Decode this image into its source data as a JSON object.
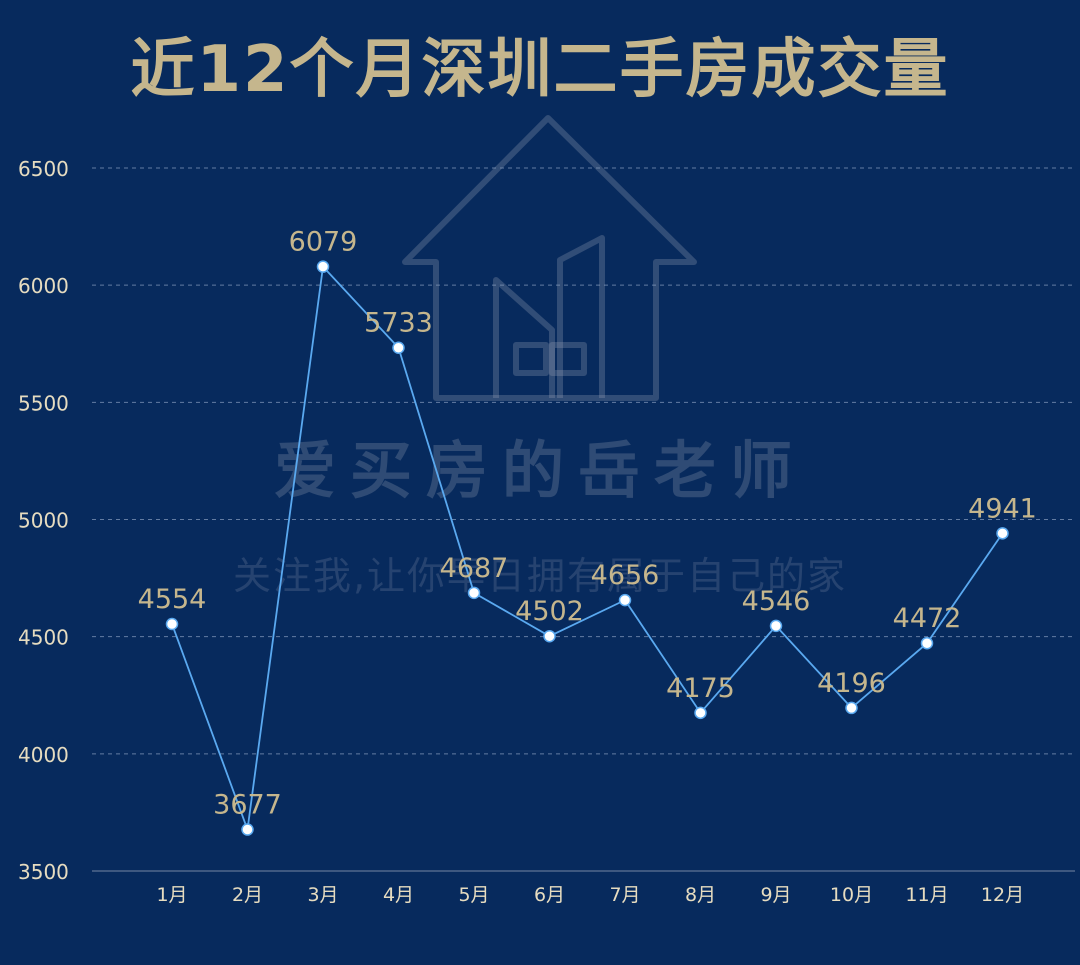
{
  "title": "近12个月深圳二手房成交量",
  "watermark": {
    "main": "爱买房的岳老师",
    "sub": "关注我,让你早日拥有属于自己的家"
  },
  "colors": {
    "background": "#072a5d",
    "title": "#c5b68d",
    "line": "#5aa9f0",
    "label": "#c5b68d",
    "axis_text": "#e6dcc0"
  },
  "chart_data": {
    "type": "line",
    "title": "近12个月深圳二手房成交量",
    "categories": [
      "1月",
      "2月",
      "3月",
      "4月",
      "5月",
      "6月",
      "7月",
      "8月",
      "9月",
      "10月",
      "11月",
      "12月"
    ],
    "values": [
      4554,
      3677,
      6079,
      5733,
      4687,
      4502,
      4656,
      4175,
      4546,
      4196,
      4472,
      4941
    ],
    "yticks": [
      3500,
      4000,
      4500,
      5000,
      5500,
      6000,
      6500
    ],
    "ylim": [
      3500,
      6500
    ],
    "grid": true,
    "legend": "none"
  }
}
